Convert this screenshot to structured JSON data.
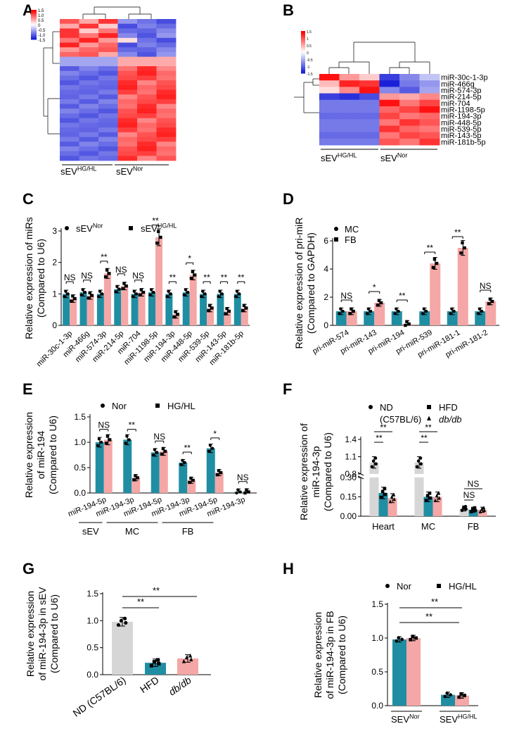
{
  "colors": {
    "teal": "#1f8ea3",
    "pink": "#f4a7a6",
    "grey": "#d6d6d6",
    "red": "#e00000",
    "blue": "#1a20d8",
    "white": "#ffffff"
  },
  "panels": {
    "A": "A",
    "B": "B",
    "C": "C",
    "D": "D",
    "E": "E",
    "F": "F",
    "G": "G",
    "H": "H"
  },
  "chart_data": [
    {
      "panel": "A",
      "type": "heatmap",
      "colorbar_ticks": [
        "1.5",
        "1.0",
        "0.5",
        "0",
        "-0.5",
        "-1.0",
        "-1.5"
      ],
      "groups": [
        {
          "base": "sEV",
          "sup": "HG/HL"
        },
        {
          "base": "sEV",
          "sup": "Nor"
        }
      ],
      "rows": 30,
      "cols": 6
    },
    {
      "panel": "B",
      "type": "heatmap",
      "colorbar_ticks": [
        "1.5",
        "1",
        "0.5",
        "0",
        "-0.5",
        "-1",
        "-1.5"
      ],
      "groups": [
        {
          "base": "sEV",
          "sup": "HG/HL"
        },
        {
          "base": "sEV",
          "sup": "Nor"
        }
      ],
      "row_labels": [
        "miR-30c-1-3p",
        "miR-466g",
        "miR-574-3p",
        "miR-214-5p",
        "miR-704",
        "miR-1198-5p",
        "miR-194-3p",
        "miR-448-5p",
        "miR-539-5p",
        "miR-143-5p",
        "miR-181b-5p"
      ],
      "values": [
        [
          1.4,
          0.6,
          0.3,
          -1.3,
          -0.8,
          -0.4
        ],
        [
          0.4,
          1.3,
          1.2,
          -1.5,
          -0.9,
          -0.7
        ],
        [
          0.2,
          0.7,
          1.4,
          -0.8,
          -1.1,
          -0.6
        ],
        [
          -1.3,
          -1.4,
          -1.2,
          0.6,
          0.5,
          0.7
        ],
        [
          -0.9,
          -0.9,
          -0.9,
          1.4,
          0.8,
          1.1
        ],
        [
          -0.9,
          -0.9,
          -0.9,
          0.9,
          1.1,
          1.4
        ],
        [
          -1.0,
          -1.0,
          -1.0,
          1.1,
          0.8,
          0.9
        ],
        [
          -0.9,
          -0.9,
          -0.9,
          0.8,
          1.2,
          1.0
        ],
        [
          -0.9,
          -0.9,
          -0.9,
          1.2,
          0.9,
          0.8
        ],
        [
          -1.0,
          -1.0,
          -1.0,
          0.8,
          1.1,
          1.0
        ],
        [
          -0.9,
          -0.9,
          -0.9,
          1.0,
          0.8,
          1.2
        ]
      ]
    },
    {
      "panel": "C",
      "type": "bar",
      "ylabel": [
        "Relative expression of miRs",
        "(Compared to U6)"
      ],
      "ylim": [
        0,
        3
      ],
      "yticks": [
        "0",
        "1",
        "2",
        "3"
      ],
      "legend": [
        {
          "name": "sEV",
          "sup": "Nor"
        },
        {
          "name": "sEV",
          "sup": "HG/HL"
        }
      ],
      "categories": [
        "miR-30c-1-3p",
        "miR-466g",
        "miR-574-3p",
        "miR-214-5p",
        "miR-704",
        "miR-1198-5p",
        "miR-194-3p",
        "miR-448-5p",
        "miR-539-5p",
        "miR-143-5p",
        "miR-181b-5p"
      ],
      "series": [
        {
          "name": "sEV Nor",
          "values": [
            1.0,
            1.05,
            1.0,
            1.15,
            1.0,
            1.05,
            1.0,
            1.05,
            1.0,
            1.0,
            1.0
          ]
        },
        {
          "name": "sEV HG/HL",
          "values": [
            0.85,
            0.95,
            1.65,
            1.25,
            1.05,
            2.8,
            0.35,
            1.6,
            0.55,
            0.45,
            0.55
          ]
        }
      ],
      "significance": [
        "NS",
        "NS",
        "**",
        "NS",
        "NS",
        "**",
        "**",
        "*",
        "**",
        "**",
        "**"
      ]
    },
    {
      "panel": "D",
      "type": "bar",
      "ylabel": [
        "Relative expression of pri-miR",
        "(Compared to GAPDH)"
      ],
      "ylim": [
        0,
        6
      ],
      "yticks": [
        "0",
        "2",
        "4",
        "6"
      ],
      "legend": [
        {
          "name": "MC",
          "sup": ""
        },
        {
          "name": "FB",
          "sup": ""
        }
      ],
      "categories": [
        "pri-miR-574",
        "pri-miR-143",
        "pri-miR-194",
        "pri-miR-539",
        "pri-miR-181-1",
        "pri-miR-181-2"
      ],
      "series": [
        {
          "name": "MC",
          "values": [
            1.0,
            1.0,
            1.0,
            1.0,
            1.0,
            1.0
          ]
        },
        {
          "name": "FB",
          "values": [
            1.0,
            1.6,
            0.1,
            4.4,
            5.5,
            1.7
          ]
        }
      ],
      "significance": [
        "NS",
        "*",
        "**",
        "**",
        "**",
        "NS"
      ]
    },
    {
      "panel": "E",
      "type": "bar",
      "ylabel": [
        "Relative expression",
        "of miR-194",
        "(Compared to U6)"
      ],
      "ylim": [
        0,
        1.5
      ],
      "yticks": [
        "0.0",
        "0.5",
        "1.0",
        "1.5"
      ],
      "legend": [
        {
          "name": "Nor",
          "sup": ""
        },
        {
          "name": "HG/HL",
          "sup": ""
        }
      ],
      "categories": [
        "miR-194-5p",
        "miR-194-3p",
        "miR-194-5p",
        "miR-194-3p",
        "miR-194-5p",
        "miR-194-3p"
      ],
      "groups": [
        "sEV",
        "MC",
        "FB"
      ],
      "series": [
        {
          "name": "Nor",
          "values": [
            1.0,
            1.05,
            0.8,
            0.6,
            0.88,
            0.02
          ]
        },
        {
          "name": "HG/HL",
          "values": [
            1.05,
            0.3,
            0.82,
            0.25,
            0.4,
            0.02
          ]
        }
      ],
      "significance": [
        "NS",
        "**",
        "NS",
        "**",
        "*",
        "NS"
      ]
    },
    {
      "panel": "F",
      "type": "bar",
      "ylabel": [
        "Relative expression of",
        "miR-194-3p",
        "(Compared to U6)"
      ],
      "yticks_upper": [
        "0.8",
        "1.1",
        "1.4"
      ],
      "yticks_lower": [
        "0.00",
        "0.15",
        "0.30"
      ],
      "legend": [
        {
          "name": "ND",
          "sup": "",
          "line2": "(C57BL/6)"
        },
        {
          "name": "HFD",
          "sup": ""
        },
        {
          "name": "db/db",
          "sup": ""
        }
      ],
      "categories": [
        "Heart",
        "MC",
        "FB"
      ],
      "series": [
        {
          "name": "ND (C57BL/6)",
          "values": [
            1.0,
            1.0,
            0.06
          ]
        },
        {
          "name": "HFD",
          "values": [
            0.18,
            0.15,
            0.05
          ]
        },
        {
          "name": "db/db",
          "values": [
            0.14,
            0.15,
            0.05
          ]
        }
      ],
      "significance_labels": [
        "**",
        "**",
        "**",
        "**",
        "NS",
        "NS"
      ]
    },
    {
      "panel": "G",
      "type": "bar",
      "ylabel": [
        "Relative expression",
        "of miR-194-3p in sEV",
        "(Compared to U6)"
      ],
      "ylim": [
        0,
        1.5
      ],
      "yticks": [
        "0.0",
        "0.5",
        "1.0",
        "1.5"
      ],
      "categories": [
        "ND (C57BL/6)",
        "HFD",
        "db/db"
      ],
      "values": [
        0.98,
        0.22,
        0.3
      ],
      "significance_labels": [
        "**",
        "**"
      ]
    },
    {
      "panel": "H",
      "type": "bar",
      "ylabel": [
        "Relative expression",
        "of miR-194-3p in FB",
        "(Compared to U6)"
      ],
      "ylim": [
        0,
        1.5
      ],
      "yticks": [
        "0.0",
        "0.5",
        "1.0",
        "1.5"
      ],
      "legend": [
        {
          "name": "Nor",
          "sup": ""
        },
        {
          "name": "HG/HL",
          "sup": ""
        }
      ],
      "categories": [
        {
          "base": "SEV",
          "sup": "Nor"
        },
        {
          "base": "SEV",
          "sup": "HG/HL"
        }
      ],
      "series": [
        {
          "name": "Nor",
          "values": [
            0.98,
            0.16
          ]
        },
        {
          "name": "HG/HL",
          "values": [
            1.0,
            0.15
          ]
        }
      ],
      "significance_labels": [
        "**",
        "**"
      ]
    }
  ]
}
